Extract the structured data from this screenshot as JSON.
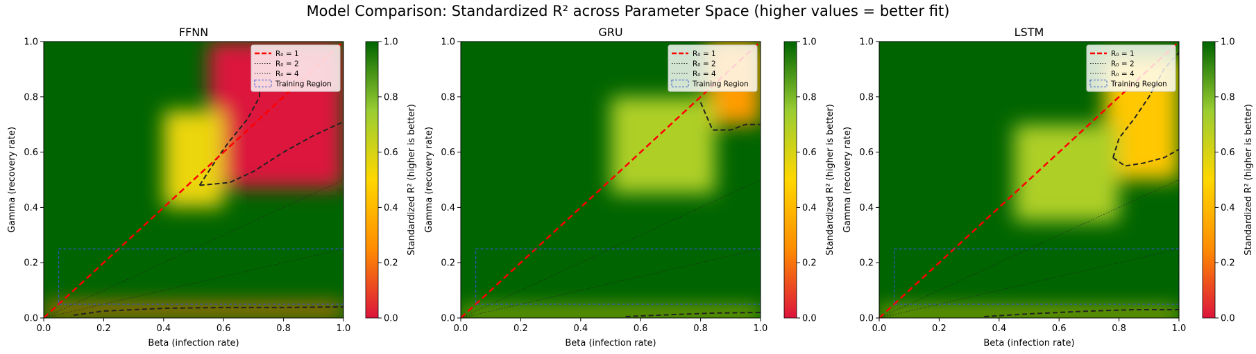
{
  "figure": {
    "title": "Model Comparison: Standardized R² across Parameter Space (higher values = better fit)"
  },
  "colors": {
    "scale": [
      "#dc143c",
      "#ff8c00",
      "#ffd700",
      "#9acd32",
      "#006400"
    ],
    "r0_1": "#ff0000",
    "r0_guides": "#222222",
    "contour": "#222222",
    "training_region": "#3355cc"
  },
  "legend": {
    "items": [
      "R₀ = 1",
      "R₀ = 2",
      "R₀ = 4",
      "Training Region"
    ],
    "placement": "top-right"
  },
  "chart_data": [
    {
      "type": "heatmap",
      "title": "FFNN",
      "xlabel": "Beta (infection rate)",
      "ylabel": "Gamma (recovery rate)",
      "xlim": [
        0,
        1
      ],
      "ylim": [
        0,
        1
      ],
      "xticks": [
        "0.0",
        "0.2",
        "0.4",
        "0.6",
        "0.8",
        "1.0"
      ],
      "yticks": [
        "0.0",
        "0.2",
        "0.4",
        "0.6",
        "0.8",
        "1.0"
      ],
      "colorbar": {
        "label": "Standardized R² (higher is better)",
        "range": [
          0,
          1
        ],
        "ticks": [
          "0.0",
          "0.2",
          "0.4",
          "0.6",
          "0.8",
          "1.0"
        ]
      },
      "training_region": {
        "beta": [
          0.05,
          1.0
        ],
        "gamma": [
          0.05,
          0.25
        ]
      },
      "r0_lines": [
        1,
        2,
        4
      ],
      "regions": [
        {
          "beta": [
            0.0,
            1.0
          ],
          "gamma": [
            0.01,
            0.05
          ],
          "value": 0.2
        },
        {
          "beta": [
            0.55,
            1.0
          ],
          "gamma": [
            0.47,
            1.0
          ],
          "value": 0.0
        },
        {
          "beta": [
            0.4,
            0.6
          ],
          "gamma": [
            0.4,
            0.75
          ],
          "value": 0.55
        }
      ],
      "contour_low": [
        [
          0.1,
          0.01
        ],
        [
          0.2,
          0.025
        ],
        [
          0.4,
          0.035
        ],
        [
          0.6,
          0.038
        ],
        [
          0.8,
          0.038
        ],
        [
          1.0,
          0.04
        ]
      ],
      "contour_high": [
        [
          0.52,
          0.48
        ],
        [
          0.62,
          0.49
        ],
        [
          0.7,
          0.53
        ],
        [
          0.8,
          0.6
        ],
        [
          0.9,
          0.66
        ],
        [
          1.0,
          0.71
        ]
      ],
      "contour_left": [
        [
          0.52,
          0.48
        ],
        [
          0.58,
          0.58
        ],
        [
          0.62,
          0.64
        ],
        [
          0.68,
          0.72
        ],
        [
          0.72,
          0.8
        ],
        [
          0.72,
          0.86
        ]
      ]
    },
    {
      "type": "heatmap",
      "title": "GRU",
      "xlabel": "Beta (infection rate)",
      "ylabel": "Gamma (recovery rate)",
      "xlim": [
        0,
        1
      ],
      "ylim": [
        0,
        1
      ],
      "xticks": [
        "0.0",
        "0.2",
        "0.4",
        "0.6",
        "0.8",
        "1.0"
      ],
      "yticks": [
        "0.0",
        "0.2",
        "0.4",
        "0.6",
        "0.8",
        "1.0"
      ],
      "colorbar": {
        "label": "Standardized R² (higher is better)",
        "range": [
          0,
          1
        ],
        "ticks": [
          "0.0",
          "0.2",
          "0.4",
          "0.6",
          "0.8",
          "1.0"
        ]
      },
      "training_region": {
        "beta": [
          0.05,
          1.0
        ],
        "gamma": [
          0.05,
          0.25
        ]
      },
      "r0_lines": [
        1,
        2,
        4
      ],
      "regions": [
        {
          "beta": [
            0.82,
            1.0
          ],
          "gamma": [
            0.7,
            1.0
          ],
          "value": 0.3
        },
        {
          "beta": [
            0.5,
            0.85
          ],
          "gamma": [
            0.45,
            0.8
          ],
          "value": 0.7
        },
        {
          "beta": [
            0.0,
            1.0
          ],
          "gamma": [
            0.0,
            0.03
          ],
          "value": 0.55
        }
      ],
      "contour_low": [
        [
          0.55,
          0.005
        ],
        [
          0.7,
          0.012
        ],
        [
          0.85,
          0.018
        ],
        [
          1.0,
          0.02
        ]
      ],
      "contour_high": [
        [
          0.8,
          0.78
        ],
        [
          0.82,
          0.73
        ],
        [
          0.84,
          0.68
        ],
        [
          0.9,
          0.68
        ],
        [
          0.95,
          0.7
        ],
        [
          1.0,
          0.7
        ]
      ],
      "contour_left": []
    },
    {
      "type": "heatmap",
      "title": "LSTM",
      "xlabel": "Beta (infection rate)",
      "ylabel": "Gamma (recovery rate)",
      "xlim": [
        0,
        1
      ],
      "ylim": [
        0,
        1
      ],
      "xticks": [
        "0.0",
        "0.2",
        "0.4",
        "0.6",
        "0.8",
        "1.0"
      ],
      "yticks": [
        "0.0",
        "0.2",
        "0.4",
        "0.6",
        "0.8",
        "1.0"
      ],
      "colorbar": {
        "label": "Standardized R² (higher is better)",
        "range": [
          0,
          1
        ],
        "ticks": [
          "0.0",
          "0.2",
          "0.4",
          "0.6",
          "0.8",
          "1.0"
        ]
      },
      "training_region": {
        "beta": [
          0.05,
          1.0
        ],
        "gamma": [
          0.05,
          0.25
        ]
      },
      "r0_lines": [
        1,
        2,
        4
      ],
      "regions": [
        {
          "beta": [
            0.75,
            1.0
          ],
          "gamma": [
            0.5,
            0.95
          ],
          "value": 0.45
        },
        {
          "beta": [
            0.45,
            0.8
          ],
          "gamma": [
            0.35,
            0.7
          ],
          "value": 0.7
        },
        {
          "beta": [
            0.0,
            1.0
          ],
          "gamma": [
            0.0,
            0.03
          ],
          "value": 0.5
        }
      ],
      "contour_low": [
        [
          0.35,
          0.005
        ],
        [
          0.5,
          0.015
        ],
        [
          0.7,
          0.025
        ],
        [
          0.85,
          0.03
        ],
        [
          1.0,
          0.03
        ]
      ],
      "contour_high": [
        [
          0.78,
          0.58
        ],
        [
          0.82,
          0.55
        ],
        [
          0.88,
          0.56
        ],
        [
          0.95,
          0.58
        ],
        [
          1.0,
          0.61
        ]
      ],
      "contour_left": [
        [
          0.78,
          0.58
        ],
        [
          0.8,
          0.65
        ],
        [
          0.85,
          0.72
        ],
        [
          0.9,
          0.8
        ],
        [
          0.95,
          0.9
        ],
        [
          1.0,
          0.96
        ]
      ]
    }
  ]
}
